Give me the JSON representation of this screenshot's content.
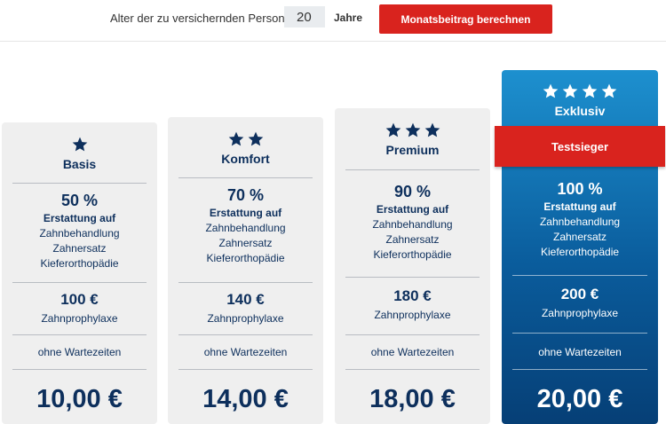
{
  "calculator": {
    "age_label": "Alter der zu versichernden Person",
    "age_value": "20",
    "age_unit": "Jahre",
    "button_label": "Monatsbeitrag berechnen"
  },
  "colors": {
    "accent_red": "#d9231e",
    "navy": "#0d2f5c",
    "exclusive_blue": "#0a5c9c"
  },
  "tariffs": [
    {
      "name": "Basis",
      "stars": 1,
      "percent": "50 %",
      "refund_label": "Erstattung auf",
      "refund_items": [
        "Zahnbehandlung",
        "Zahnersatz",
        "Kieferorthopädie"
      ],
      "prophylaxis_amount": "100 €",
      "prophylaxis_label": "Zahnprophylaxe",
      "waiting": "ohne Wartezeiten",
      "price": "10,00 €"
    },
    {
      "name": "Komfort",
      "stars": 2,
      "percent": "70 %",
      "refund_label": "Erstattung auf",
      "refund_items": [
        "Zahnbehandlung",
        "Zahnersatz",
        "Kieferorthopädie"
      ],
      "prophylaxis_amount": "140 €",
      "prophylaxis_label": "Zahnprophylaxe",
      "waiting": "ohne Wartezeiten",
      "price": "14,00 €"
    },
    {
      "name": "Premium",
      "stars": 3,
      "percent": "90 %",
      "refund_label": "Erstattung auf",
      "refund_items": [
        "Zahnbehandlung",
        "Zahnersatz",
        "Kieferorthopädie"
      ],
      "prophylaxis_amount": "180 €",
      "prophylaxis_label": "Zahnprophylaxe",
      "waiting": "ohne Wartezeiten",
      "price": "18,00 €"
    },
    {
      "name": "Exklusiv",
      "stars": 4,
      "badge": "Testsieger",
      "percent": "100 %",
      "refund_label": "Erstattung auf",
      "refund_items": [
        "Zahnbehandlung",
        "Zahnersatz",
        "Kieferorthopädie"
      ],
      "prophylaxis_amount": "200 €",
      "prophylaxis_label": "Zahnprophylaxe",
      "waiting": "ohne Wartezeiten",
      "price": "20,00 €"
    }
  ]
}
